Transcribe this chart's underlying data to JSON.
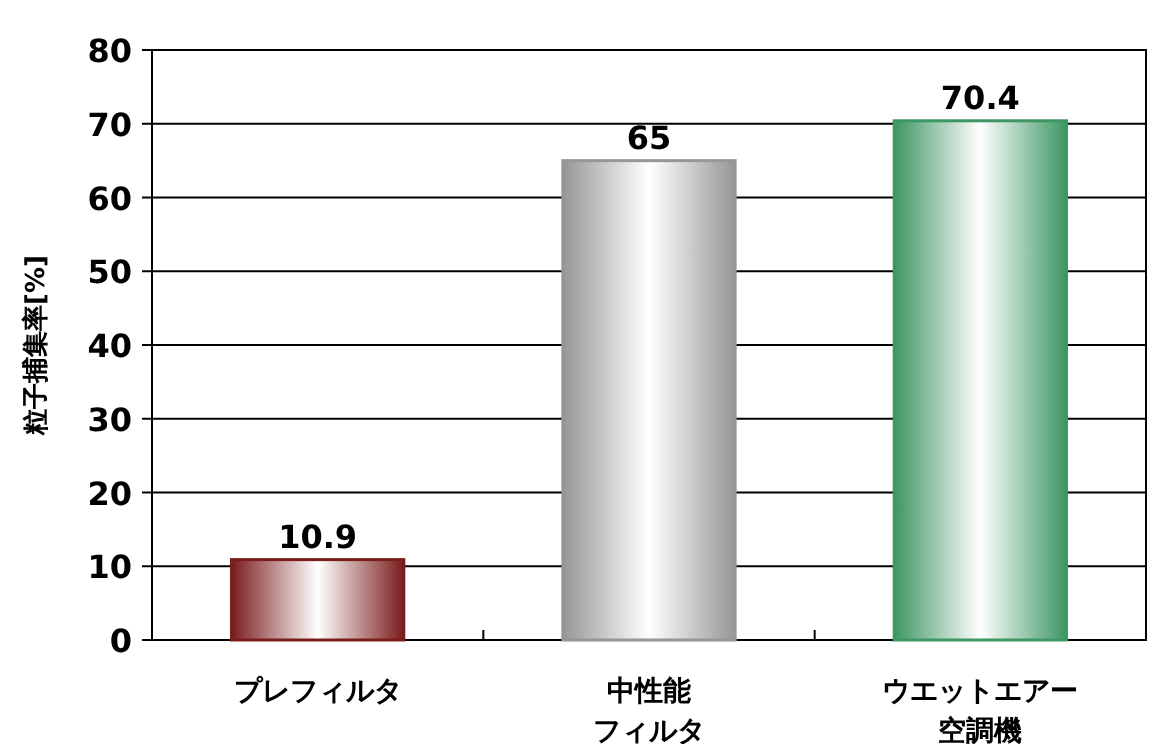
{
  "chart_data": {
    "type": "bar",
    "ylabel": "粒子捕集率[%]",
    "categories": [
      "プレフィルタ",
      "中性能フィルタ",
      "ウエットエアー空調機"
    ],
    "values": [
      10.9,
      65,
      70.4
    ],
    "colors": [
      "#7a1c1c",
      "#969696",
      "#3d9663"
    ],
    "ylim": [
      0,
      80
    ],
    "yticks": [
      0,
      10,
      20,
      30,
      40,
      50,
      60,
      70,
      80
    ],
    "grid": "y",
    "data_labels": true
  }
}
